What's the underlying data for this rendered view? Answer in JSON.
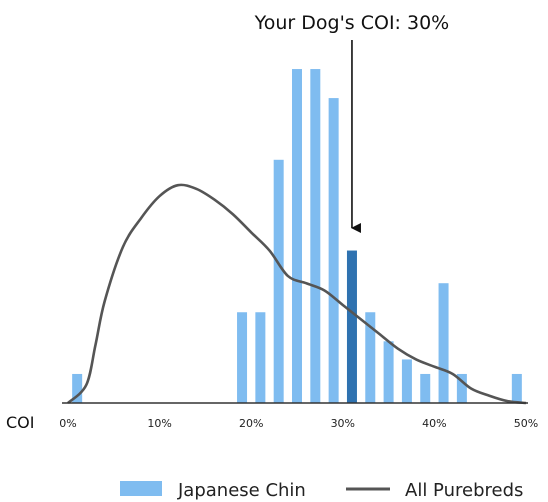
{
  "chart_data": {
    "type": "bar",
    "annotation": "Your Dog's COI: 30%",
    "highlight_x": 31,
    "xlabel": "COI",
    "xlim": [
      0,
      50
    ],
    "xticks": [
      "0%",
      "10%",
      "20%",
      "30%",
      "40%",
      "50%"
    ],
    "xtick_values": [
      0,
      10,
      20,
      30,
      40,
      50
    ],
    "ylim": [
      0,
      100
    ],
    "grid": false,
    "legend_position": "bottom-right",
    "bar_color": "#7fbcf0",
    "highlight_color": "#2f72b0",
    "line_color": "#555555",
    "series": [
      {
        "name": "Japanese Chin",
        "kind": "bar",
        "x": [
          1,
          19,
          21,
          23,
          25,
          27,
          29,
          31,
          33,
          35,
          37,
          39,
          41,
          43,
          49
        ],
        "values": [
          8,
          25,
          25,
          67,
          92,
          92,
          84,
          42,
          25,
          17,
          12,
          8,
          33,
          8,
          8
        ]
      },
      {
        "name": "All Purebreds",
        "kind": "line",
        "x": [
          0,
          2,
          3,
          4,
          6,
          8,
          10,
          12,
          14,
          16,
          18,
          20,
          22,
          24,
          26,
          28,
          30,
          32,
          34,
          36,
          38,
          40,
          42,
          44,
          46,
          48,
          50
        ],
        "values": [
          0,
          5,
          16,
          28,
          43,
          51,
          57,
          60,
          59,
          56,
          52,
          47,
          42,
          35,
          33,
          31,
          27,
          23,
          19,
          15,
          12,
          10,
          8,
          4,
          2,
          0.5,
          0
        ]
      }
    ]
  }
}
